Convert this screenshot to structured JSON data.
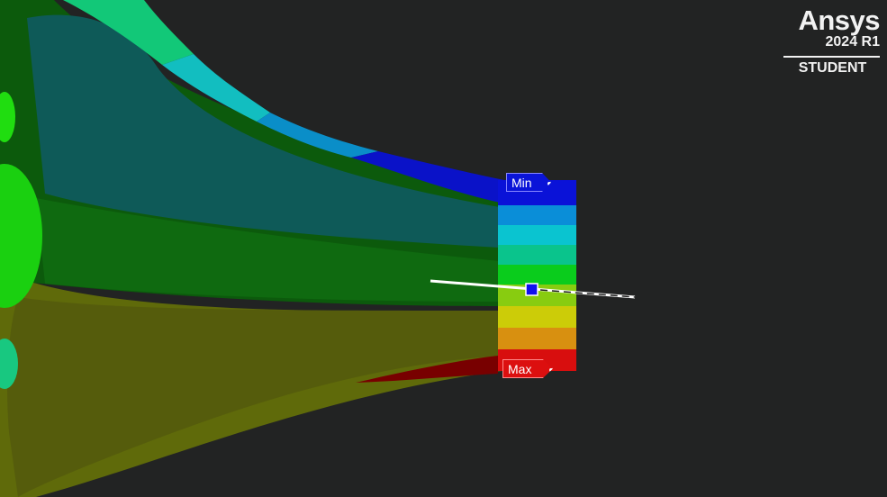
{
  "logo": {
    "brand": "Ansys",
    "version": "2024 R1",
    "edition": "STUDENT"
  },
  "probes": {
    "min_label": "Min",
    "max_label": "Max"
  },
  "colors": {
    "background": "#222323",
    "min_marker": "#0a14d8",
    "max_marker": "#dc0f0f",
    "probe_handle": "#1010ee"
  }
}
